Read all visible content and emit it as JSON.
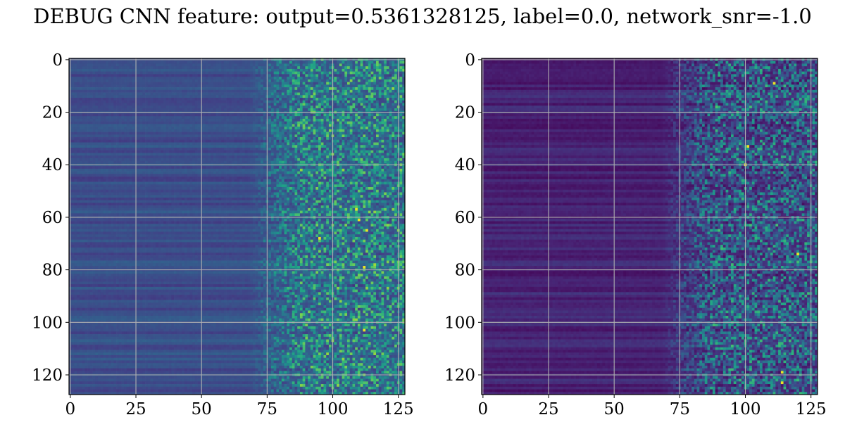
{
  "title": "DEBUG CNN feature: output=0.5361328125, label=0.0, network_snr=-1.0",
  "chart_data": [
    {
      "type": "heatmap",
      "colormap": "viridis",
      "rows": 128,
      "cols": 128,
      "xlim": [
        0,
        127
      ],
      "ylim": [
        127,
        0
      ],
      "y_inverted": true,
      "grid": true,
      "xticks": [
        0,
        25,
        50,
        75,
        100,
        125
      ],
      "yticks": [
        0,
        20,
        40,
        60,
        80,
        100,
        120
      ],
      "description_values": "low uniform values for columns 0-70 with per-row horizontal banding, increasingly noisy higher values for columns 75-127",
      "hotspots": [
        [
          57,
          109
        ],
        [
          61,
          110
        ],
        [
          65,
          113
        ],
        [
          68,
          95
        ],
        [
          79,
          112
        ],
        [
          103,
          112
        ]
      ],
      "seed": 11,
      "base_level": 0.24
    },
    {
      "type": "heatmap",
      "colormap": "viridis",
      "rows": 128,
      "cols": 128,
      "xlim": [
        0,
        127
      ],
      "ylim": [
        127,
        0
      ],
      "y_inverted": true,
      "grid": true,
      "xticks": [
        0,
        25,
        50,
        75,
        100,
        125
      ],
      "yticks": [
        0,
        20,
        40,
        60,
        80,
        100,
        120
      ],
      "description_values": "very low values for columns 0-70 with horizontal banding, sparse noisy higher values for columns 75-127",
      "hotspots": [
        [
          40,
          100
        ],
        [
          74,
          120
        ],
        [
          123,
          114
        ],
        [
          9,
          111
        ],
        [
          33,
          101
        ],
        [
          119,
          114
        ]
      ],
      "seed": 29,
      "base_level": 0.1
    }
  ]
}
